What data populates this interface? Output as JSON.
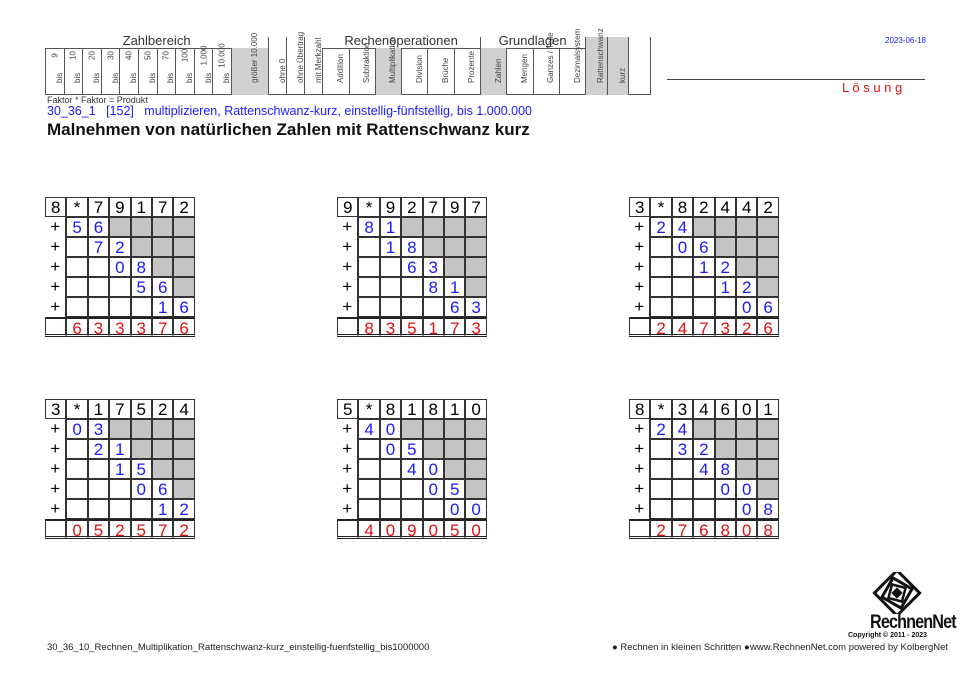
{
  "header": {
    "groups": {
      "zahlbereich": "Zahlbereich",
      "rechenoperationen": "Rechenoperationen",
      "grundlagen": "Grundlagen"
    },
    "zahlbereich": [
      {
        "top": "9",
        "bottom": "bis",
        "on": false
      },
      {
        "top": "10",
        "bottom": "bis",
        "on": false
      },
      {
        "top": "20",
        "bottom": "bis",
        "on": false
      },
      {
        "top": "30",
        "bottom": "bis",
        "on": false
      },
      {
        "top": "40",
        "bottom": "bis",
        "on": false
      },
      {
        "top": "50",
        "bottom": "bis",
        "on": false
      },
      {
        "top": "70",
        "bottom": "bis",
        "on": false
      },
      {
        "top": "100",
        "bottom": "bis",
        "on": false
      },
      {
        "top": "1.000",
        "bottom": "bis",
        "on": false
      },
      {
        "top": "10.000",
        "bottom": "bis",
        "on": false
      },
      {
        "top": "",
        "bottom": "größer 10.000",
        "on": true
      }
    ],
    "extras": [
      {
        "label": "ohne 0",
        "on": false
      },
      {
        "label": "ohne Übertrag",
        "on": false
      },
      {
        "label": "mit Merkzahl",
        "on": false
      }
    ],
    "rechenoperationen": [
      {
        "label": "Addition",
        "on": false
      },
      {
        "label": "Subtraktion",
        "on": false
      },
      {
        "label": "Multiplikation",
        "on": true
      },
      {
        "label": "Division",
        "on": false
      },
      {
        "label": "Brüche",
        "on": false
      },
      {
        "label": "Prozente",
        "on": false
      }
    ],
    "grundlagen": [
      {
        "label": "Zahlen",
        "on": true
      },
      {
        "label": "Mengen",
        "on": false
      },
      {
        "label": "Ganzes / Teile",
        "on": false
      },
      {
        "label": "Dezimalsystem",
        "on": false
      }
    ],
    "special": [
      {
        "label": "Rattenschwanz",
        "on": true
      },
      {
        "label": "kurz",
        "on": true
      },
      {
        "label": "",
        "on": false
      }
    ],
    "formula": "Faktor * Faktor = Produkt"
  },
  "date": "2023-06-18",
  "loesung": "L ö s u n g",
  "subtitle": "30_36_1   [152]   multiplizieren, Rattenschwanz-kurz, einstellig-fünfstellig, bis 1.000.000",
  "title": "Malnehmen von natürlichen Zahlen mit Rattenschwanz kurz",
  "colors": {
    "partial": "#1a1aff",
    "result": "#e01010",
    "gray": "#c4c4c4"
  },
  "problems": [
    {
      "factor": "8",
      "op": "*",
      "number": "79172",
      "partials": [
        "56",
        "72",
        "08",
        "56",
        "16"
      ],
      "result": "633376"
    },
    {
      "factor": "9",
      "op": "*",
      "number": "92797",
      "partials": [
        "81",
        "18",
        "63",
        "81",
        "63"
      ],
      "result": "835173"
    },
    {
      "factor": "3",
      "op": "*",
      "number": "82442",
      "partials": [
        "24",
        "06",
        "12",
        "12",
        "06"
      ],
      "result": "247326"
    },
    {
      "factor": "3",
      "op": "*",
      "number": "17524",
      "partials": [
        "03",
        "21",
        "15",
        "06",
        "12"
      ],
      "result": "052572"
    },
    {
      "factor": "5",
      "op": "*",
      "number": "81810",
      "partials": [
        "40",
        "05",
        "40",
        "05",
        "00"
      ],
      "result": "409050"
    },
    {
      "factor": "8",
      "op": "*",
      "number": "34601",
      "partials": [
        "24",
        "32",
        "48",
        "00",
        "08"
      ],
      "result": "276808"
    }
  ],
  "footer": {
    "filename": "30_36_10_Rechnen_Multiplikation_Rattenschwanz-kurz_einstellig-fuenfstellig_bis1000000",
    "slogan": "● Rechnen in kleinen Schritten ●",
    "url": "www.RechnenNet.com powered by KolbergNet",
    "logo_text": "RechnenNet",
    "copyright": "Copyright © 2011 - 2023"
  }
}
